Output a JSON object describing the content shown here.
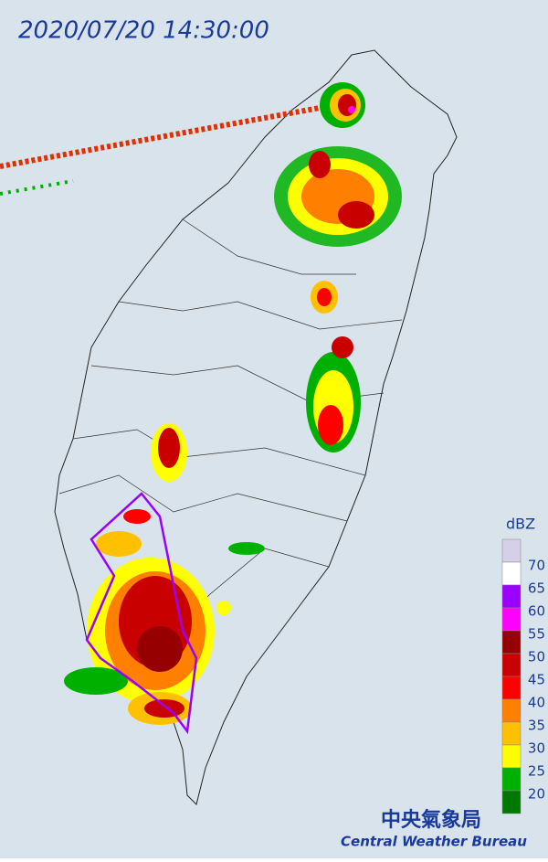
{
  "header": {
    "timestamp": "2020/07/20 14:30:00"
  },
  "legend": {
    "unit": "dBZ",
    "labels": [
      "70",
      "65",
      "60",
      "55",
      "50",
      "45",
      "40",
      "35",
      "30",
      "25",
      "20"
    ],
    "colors": [
      "#d6cfe8",
      "#ffffff",
      "#9b00ff",
      "#ff00ff",
      "#960000",
      "#c80000",
      "#ff0000",
      "#ff7f00",
      "#ffc000",
      "#ffff00",
      "#00b000",
      "#007800"
    ]
  },
  "logo": {
    "name": "中央氣象局",
    "name_en": "Central Weather Bureau"
  }
}
